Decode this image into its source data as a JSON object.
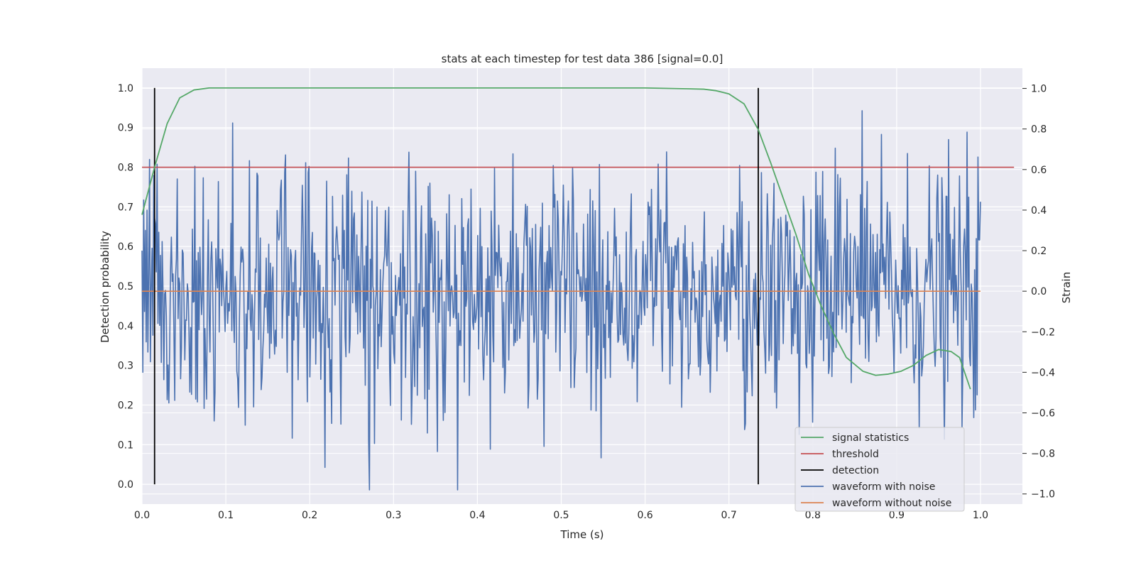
{
  "chart_data": {
    "type": "line",
    "title": "stats at each timestep for test data 386 [signal=0.0]",
    "xlabel": "Time (s)",
    "ylabel": "Detection probability",
    "y2label": "Strain",
    "xlim": [
      0.0,
      1.05
    ],
    "ylim": [
      -0.05,
      1.05
    ],
    "y2lim": [
      -1.05,
      1.1
    ],
    "xticks": [
      "0.0",
      "0.1",
      "0.2",
      "0.3",
      "0.4",
      "0.5",
      "0.6",
      "0.7",
      "0.8",
      "0.9",
      "1.0"
    ],
    "yticks": [
      "0.0",
      "0.1",
      "0.2",
      "0.3",
      "0.4",
      "0.5",
      "0.6",
      "0.7",
      "0.8",
      "0.9",
      "1.0"
    ],
    "y2ticks": [
      "−1.0",
      "−0.8",
      "−0.6",
      "−0.4",
      "−0.2",
      "0.0",
      "0.2",
      "0.4",
      "0.6",
      "0.8",
      "1.0"
    ],
    "grid": true,
    "legend_position": "bottom-right",
    "colors": {
      "signal": "#55a868",
      "threshold": "#c44e52",
      "detection": "#000000",
      "noisy": "#4c72b0",
      "clean": "#dd8452"
    },
    "series": [
      {
        "name": "signal statistics",
        "axis": "left",
        "x": [
          0.0,
          0.015,
          0.03,
          0.045,
          0.062,
          0.08,
          0.1,
          0.2,
          0.3,
          0.4,
          0.5,
          0.6,
          0.65,
          0.67,
          0.685,
          0.7,
          0.718,
          0.735,
          0.75,
          0.765,
          0.78,
          0.795,
          0.81,
          0.825,
          0.84,
          0.86,
          0.875,
          0.89,
          0.905,
          0.92,
          0.935,
          0.95,
          0.965,
          0.975,
          0.988
        ],
        "y": [
          0.68,
          0.8,
          0.91,
          0.975,
          0.995,
          1.0,
          1.0,
          1.0,
          1.0,
          1.0,
          1.0,
          1.0,
          0.998,
          0.997,
          0.993,
          0.985,
          0.96,
          0.895,
          0.81,
          0.72,
          0.63,
          0.53,
          0.45,
          0.38,
          0.32,
          0.285,
          0.275,
          0.278,
          0.285,
          0.3,
          0.325,
          0.34,
          0.335,
          0.32,
          0.24
        ]
      },
      {
        "name": "threshold",
        "axis": "left",
        "x": [
          0.0,
          1.04
        ],
        "y": [
          0.8,
          0.8
        ]
      },
      {
        "name": "detection",
        "axis": "left",
        "vlines": [
          0.015,
          0.735
        ],
        "ymin": 0.0,
        "ymax": 1.0
      },
      {
        "name": "waveform with noise",
        "axis": "right",
        "n_points": 1000,
        "x_range": [
          0.0,
          1.0
        ],
        "amplitude_std": 0.3,
        "min": -0.98,
        "max": 1.0,
        "y_sample": [
          0.2,
          -0.4,
          0.45,
          -0.1,
          0.3,
          -0.25,
          0.4,
          -0.3,
          0.1,
          0.65
        ]
      },
      {
        "name": "waveform without noise",
        "axis": "right",
        "x": [
          0.0,
          1.0
        ],
        "y": [
          0.0,
          0.0
        ]
      }
    ]
  }
}
